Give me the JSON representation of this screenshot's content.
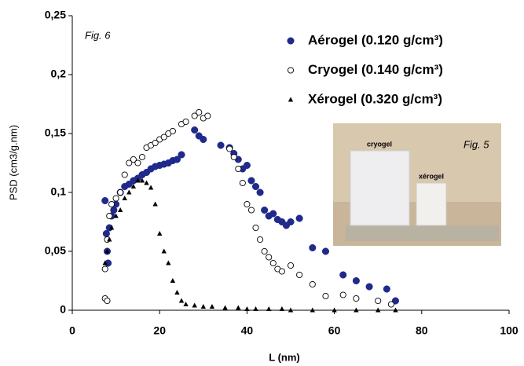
{
  "chart_data": {
    "type": "scatter",
    "annotations": [
      "Fig. 6"
    ],
    "x_label": "L (nm)",
    "y_label": "PSD (cm3/g.nm)",
    "xlim": [
      0,
      100
    ],
    "ylim": [
      0,
      0.25
    ],
    "xticks": [
      0,
      20,
      40,
      60,
      80,
      100
    ],
    "yticks": [
      {
        "value": 0,
        "label": "0"
      },
      {
        "value": 0.05,
        "label": "0,05"
      },
      {
        "value": 0.1,
        "label": "0,1"
      },
      {
        "value": 0.15,
        "label": "0,15"
      },
      {
        "value": 0.2,
        "label": "0,2"
      },
      {
        "value": 0.25,
        "label": "0,25"
      }
    ],
    "inset": {
      "caption": "Fig. 5",
      "labels": [
        "cryogel",
        "xérogel"
      ]
    },
    "series": [
      {
        "name": "Aérogel (0.120 g/cm³)",
        "color": "#1f2a8a",
        "marker": "circle",
        "x": [
          7.5,
          7.8,
          8,
          8.2,
          8.5,
          9,
          9.5,
          10,
          11,
          12,
          13,
          14,
          15,
          16,
          17,
          18,
          19,
          20,
          21,
          22,
          23,
          24,
          25,
          28,
          29,
          30,
          34,
          36,
          37,
          38,
          39,
          40,
          41,
          42,
          43,
          44,
          45,
          46,
          47,
          48,
          49,
          50,
          52,
          55,
          58,
          62,
          65,
          68,
          72,
          74
        ],
        "values": [
          0.093,
          0.065,
          0.05,
          0.04,
          0.07,
          0.08,
          0.085,
          0.09,
          0.1,
          0.105,
          0.107,
          0.11,
          0.112,
          0.115,
          0.117,
          0.12,
          0.122,
          0.123,
          0.124,
          0.125,
          0.127,
          0.128,
          0.132,
          0.153,
          0.148,
          0.145,
          0.14,
          0.138,
          0.133,
          0.128,
          0.12,
          0.123,
          0.11,
          0.105,
          0.1,
          0.085,
          0.08,
          0.082,
          0.077,
          0.075,
          0.072,
          0.075,
          0.078,
          0.053,
          0.05,
          0.03,
          0.025,
          0.02,
          0.018,
          0.008
        ]
      },
      {
        "name": "Cryogel (0.140 g/cm³)",
        "color": "#000000",
        "marker": "open-circle",
        "x": [
          7.5,
          7.5,
          8,
          8,
          8.5,
          9,
          10,
          11,
          12,
          13,
          14,
          15,
          16,
          17,
          18,
          19,
          20,
          21,
          22,
          23,
          25,
          26,
          28,
          29,
          30,
          31,
          36,
          37,
          38,
          39,
          40,
          41,
          42,
          43,
          44,
          45,
          46,
          47,
          48,
          50,
          52,
          55,
          58,
          62,
          65,
          70,
          73
        ],
        "values": [
          0.035,
          0.01,
          0.008,
          0.06,
          0.08,
          0.09,
          0.095,
          0.1,
          0.115,
          0.125,
          0.128,
          0.125,
          0.13,
          0.138,
          0.14,
          0.142,
          0.145,
          0.147,
          0.15,
          0.152,
          0.158,
          0.16,
          0.165,
          0.168,
          0.163,
          0.165,
          0.137,
          0.13,
          0.12,
          0.108,
          0.09,
          0.085,
          0.07,
          0.06,
          0.05,
          0.045,
          0.04,
          0.035,
          0.033,
          0.038,
          0.03,
          0.022,
          0.012,
          0.013,
          0.01,
          0.008,
          0.005
        ]
      },
      {
        "name": "Xérogel (0.320 g/cm³)",
        "color": "#000000",
        "marker": "triangle",
        "x": [
          7.5,
          8,
          8.5,
          9,
          10,
          11,
          12,
          13,
          14,
          15,
          16,
          17,
          18,
          19,
          20,
          21,
          22,
          23,
          24,
          25,
          26,
          28,
          30,
          32,
          35,
          38,
          40,
          42,
          45,
          48,
          50,
          55,
          60,
          65,
          70,
          74
        ],
        "values": [
          0.04,
          0.05,
          0.06,
          0.07,
          0.08,
          0.085,
          0.095,
          0.1,
          0.105,
          0.11,
          0.11,
          0.108,
          0.104,
          0.09,
          0.065,
          0.05,
          0.04,
          0.025,
          0.015,
          0.008,
          0.005,
          0.004,
          0.003,
          0.003,
          0.002,
          0.002,
          0.001,
          0.001,
          0.001,
          0.001,
          0,
          0,
          0,
          0,
          0,
          0
        ]
      }
    ]
  }
}
